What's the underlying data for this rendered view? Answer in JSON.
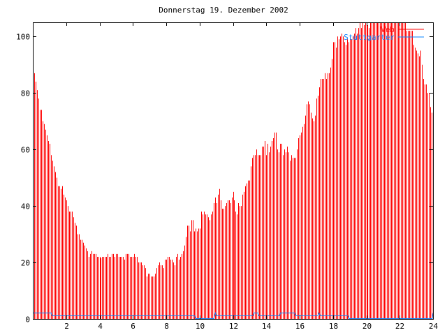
{
  "chart_data": {
    "type": "bar",
    "style": "impulses",
    "title": "Donnerstag 19. Dezember 2002",
    "xlabel": "",
    "ylabel": "",
    "xlim": [
      0,
      24
    ],
    "ylim": [
      0,
      105
    ],
    "xticks": [
      "2",
      "4",
      "6",
      "8",
      "10",
      "12",
      "14",
      "16",
      "18",
      "20",
      "22",
      "24"
    ],
    "yticks": [
      "0",
      "20",
      "40",
      "60",
      "80",
      "100"
    ],
    "grid": false,
    "legend_position": "top-right",
    "x_step_minutes": 5,
    "series": [
      {
        "name": "Web",
        "color": "#ff0000",
        "type": "impulses",
        "values": [
          90,
          87,
          84,
          81,
          78,
          74,
          74,
          70,
          69,
          67,
          65,
          63,
          62,
          58,
          56,
          54,
          52,
          50,
          47,
          47,
          46,
          47,
          44,
          43,
          42,
          40,
          38,
          38,
          38,
          36,
          34,
          33,
          30,
          30,
          28,
          28,
          27,
          26,
          25,
          24,
          22,
          23,
          24,
          23,
          23,
          23,
          22,
          22,
          22,
          21.5,
          22,
          22,
          22,
          22,
          23,
          22,
          22,
          23,
          23,
          22,
          23,
          23,
          22,
          22,
          22,
          22,
          21,
          23,
          23,
          23,
          22,
          22,
          22,
          23,
          22,
          22,
          20,
          20,
          20,
          19,
          19,
          18,
          15,
          16,
          16,
          15,
          15,
          15,
          16,
          18,
          19,
          20,
          19,
          19,
          18,
          21,
          21,
          22,
          22,
          21,
          21,
          20,
          19,
          22,
          23,
          21,
          22,
          23,
          24,
          26,
          29,
          33,
          33,
          31,
          35,
          35,
          31,
          32,
          31,
          32,
          32,
          38,
          37,
          38,
          37,
          37,
          36,
          35,
          37,
          38,
          41,
          43,
          41,
          44,
          46,
          42,
          39,
          39,
          40,
          41,
          42,
          42,
          41,
          43,
          45,
          42,
          38,
          37,
          41,
          40,
          40,
          44,
          45,
          47,
          48,
          49,
          49,
          54,
          57,
          58,
          58,
          60,
          58,
          58,
          58,
          61,
          61,
          63,
          58,
          62,
          59,
          61,
          63,
          64,
          66,
          66,
          60,
          59,
          62,
          62,
          58,
          60,
          59,
          61,
          59,
          56,
          58,
          57,
          57,
          57,
          60,
          64,
          65,
          66,
          68,
          69,
          72,
          76,
          77,
          76,
          73,
          71,
          70,
          72,
          78,
          79,
          82,
          85,
          85,
          85,
          87,
          85,
          87,
          87,
          89,
          92,
          98,
          98,
          96,
          100,
          99,
          100,
          101,
          100,
          98,
          97,
          99,
          98,
          100,
          99,
          100,
          101,
          103,
          101,
          103,
          105,
          103,
          105,
          104,
          105,
          108,
          104,
          103,
          107,
          108,
          106,
          109,
          110,
          108,
          107,
          110,
          108,
          109,
          110,
          108,
          107,
          108,
          110,
          109,
          108,
          107,
          108,
          110,
          109,
          108,
          107,
          106,
          107,
          106,
          102,
          102,
          102,
          102,
          102,
          97,
          96,
          95,
          94,
          93,
          95,
          90,
          85,
          83,
          83,
          80,
          80,
          75,
          73,
          71
        ]
      },
      {
        "name": "Stuttgarter",
        "color": "#0a84ff",
        "type": "steps",
        "points": [
          [
            0,
            2
          ],
          [
            1.1,
            2
          ],
          [
            1.15,
            1
          ],
          [
            9.7,
            1
          ],
          [
            9.75,
            0
          ],
          [
            10.85,
            0
          ],
          [
            10.9,
            1
          ],
          [
            10.95,
            2
          ],
          [
            11.0,
            1
          ],
          [
            13.2,
            1
          ],
          [
            13.25,
            2
          ],
          [
            13.5,
            2
          ],
          [
            13.55,
            1
          ],
          [
            14.8,
            1
          ],
          [
            14.85,
            2
          ],
          [
            15.7,
            2
          ],
          [
            15.75,
            1
          ],
          [
            17.1,
            1
          ],
          [
            17.15,
            2
          ],
          [
            17.25,
            1
          ],
          [
            18.9,
            1
          ],
          [
            18.95,
            0
          ],
          [
            23.95,
            0
          ],
          [
            24,
            2
          ]
        ]
      }
    ]
  }
}
